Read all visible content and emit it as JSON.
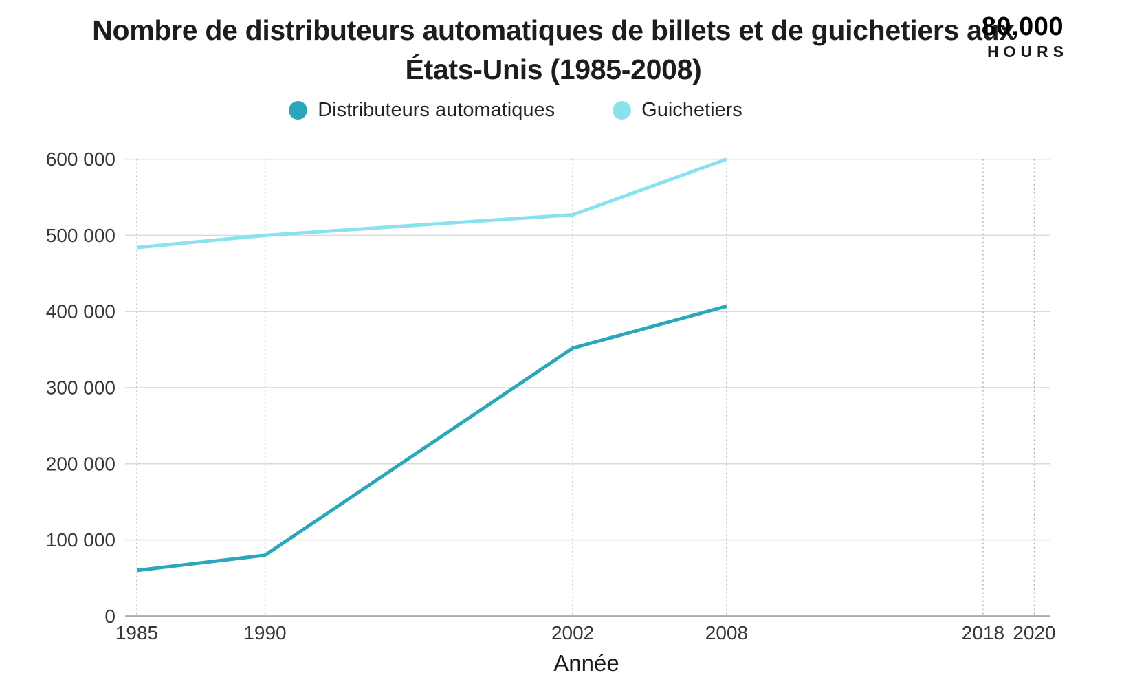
{
  "header": {
    "title": "Nombre de distributeurs automatiques de billets et de guichetiers aux États-Unis (1985-2008)",
    "logo": {
      "top": "80,000",
      "bottom": "HOURS"
    }
  },
  "colors": {
    "accent": "#3cb5cc",
    "series_dark": "#2ba7bb",
    "series_light": "#8ae2f0",
    "grid": "#d9d9d9",
    "grid_dotted": "#ababab",
    "axis": "#a9abad",
    "tick_text": "#33373c",
    "background": "#ffffff"
  },
  "chart_data": {
    "type": "line",
    "title": "Nombre de distributeurs automatiques de billets et de guichetiers aux États-Unis (1985-2008)",
    "xlabel": "Année",
    "ylabel": "",
    "xlim": [
      1985,
      2020
    ],
    "ylim": [
      0,
      600000
    ],
    "x_ticks": [
      1985,
      1990,
      2002,
      2008,
      2018,
      2020
    ],
    "y_ticks": [
      0,
      100000,
      200000,
      300000,
      400000,
      500000,
      600000
    ],
    "y_tick_labels": [
      "0",
      "100 000",
      "200 000",
      "300 000",
      "400 000",
      "500 000",
      "600 000"
    ],
    "grid": {
      "horizontal": "solid",
      "vertical": "dotted"
    },
    "legend_position": "top",
    "series": [
      {
        "name": "Distributeurs automatiques",
        "color": "#2ba7bb",
        "x": [
          1985,
          1990,
          2002,
          2008
        ],
        "values": [
          60000,
          80000,
          352000,
          407000
        ]
      },
      {
        "name": "Guichetiers",
        "color": "#8ae2f0",
        "x": [
          1985,
          1990,
          2002,
          2008
        ],
        "values": [
          484000,
          500000,
          527000,
          600000
        ]
      }
    ]
  }
}
